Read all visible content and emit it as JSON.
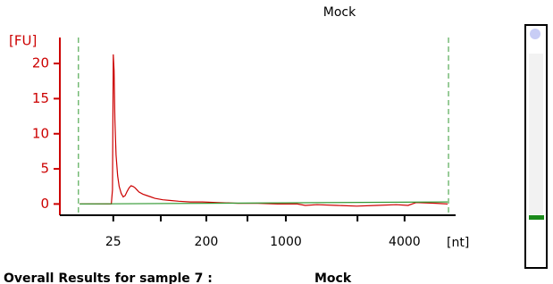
{
  "chart_data": {
    "type": "line",
    "title": "Mock",
    "y_label": "[FU]",
    "x_label": "[nt]",
    "ylim": [
      -1.6,
      23.7
    ],
    "yticks": [
      0,
      5,
      10,
      15,
      20
    ],
    "y_color": "#cc0000",
    "xlim": [
      0,
      100
    ],
    "xticks": [
      {
        "value": 13.5,
        "label": "25"
      },
      {
        "value": 37,
        "label": "200"
      },
      {
        "value": 57.1,
        "label": "1000"
      },
      {
        "value": 87.1,
        "label": "4000"
      }
    ],
    "xminor_ticks": [
      25.5,
      47.4,
      75.2
    ],
    "markers": [
      4.7,
      98.2
    ],
    "marker_color": "#339933",
    "series": [
      {
        "color": "#cc0000",
        "x": [
          5,
          10,
          13,
          13.3,
          13.5,
          13.7,
          13.9,
          14.2,
          14.6,
          15,
          15.5,
          16,
          16.5,
          17,
          17.5,
          18,
          18.5,
          19,
          19.5,
          20,
          21,
          22,
          23,
          24,
          26,
          28,
          30,
          33,
          36,
          40,
          45,
          50,
          55,
          60,
          62,
          65,
          70,
          75,
          80,
          85,
          88,
          90,
          95,
          98
        ],
        "values": [
          0,
          0,
          0,
          2,
          21.3,
          19,
          12,
          7,
          4,
          2.5,
          1.5,
          1,
          1.2,
          1.8,
          2.3,
          2.6,
          2.5,
          2.3,
          2,
          1.7,
          1.4,
          1.2,
          1,
          0.8,
          0.6,
          0.5,
          0.4,
          0.3,
          0.3,
          0.2,
          0.1,
          0.1,
          0,
          0,
          -0.2,
          -0.1,
          -0.2,
          -0.3,
          -0.2,
          -0.1,
          -0.2,
          0.2,
          0.1,
          0
        ]
      },
      {
        "color": "#339933",
        "x": [
          5,
          98
        ],
        "values": [
          0,
          0.3
        ]
      }
    ]
  },
  "results": {
    "heading": "Overall Results for sample 7 :",
    "sample": "Mock"
  }
}
